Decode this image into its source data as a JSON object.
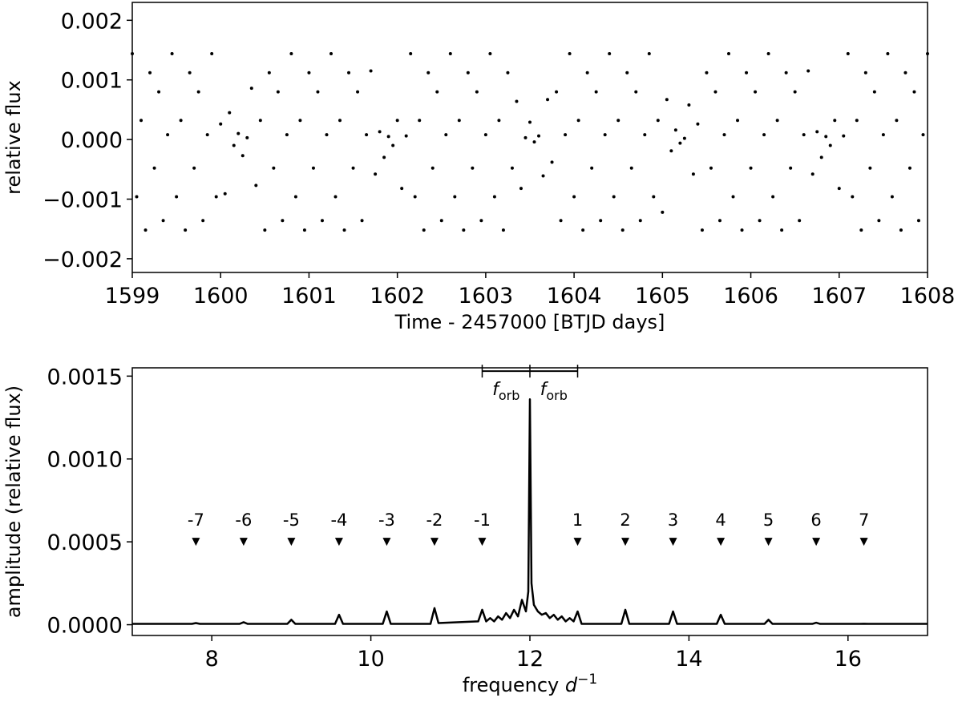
{
  "chart_data": [
    {
      "type": "scatter",
      "xlabel": "Time - 2457000 [BTJD days]",
      "ylabel": "relative flux",
      "color": "#000000",
      "xlim": [
        1599,
        1608
      ],
      "ylim": [
        -0.00223,
        0.0023
      ],
      "xticks": [
        1599,
        1600,
        1601,
        1602,
        1603,
        1604,
        1605,
        1606,
        1607,
        1608
      ],
      "yticks": [
        {
          "value": -0.002,
          "label": "−0.002"
        },
        {
          "value": -0.001,
          "label": "−0.001"
        },
        {
          "value": 0,
          "label": "0.000"
        },
        0.001,
        0.002
      ],
      "x": [
        1599,
        1599.05,
        1599.1,
        1599.15,
        1599.2,
        1599.25,
        1599.3,
        1599.35,
        1599.4,
        1599.45,
        1599.5,
        1599.55,
        1599.6,
        1599.65,
        1599.7,
        1599.75,
        1599.8,
        1599.85,
        1599.9,
        1599.95,
        1600,
        1600.05,
        1600.1,
        1600.15,
        1600.2,
        1600.25,
        1600.3,
        1600.35,
        1600.4,
        1600.45,
        1600.5,
        1600.55,
        1600.6,
        1600.65,
        1600.7,
        1600.75,
        1600.8,
        1600.85,
        1600.9,
        1600.95,
        1601,
        1601.05,
        1601.1,
        1601.15,
        1601.2,
        1601.25,
        1601.3,
        1601.35,
        1601.4,
        1601.45,
        1601.5,
        1601.55,
        1601.6,
        1601.65,
        1601.7,
        1601.75,
        1601.8,
        1601.85,
        1601.9,
        1601.95,
        1602,
        1602.05,
        1602.1,
        1602.15,
        1602.2,
        1602.25,
        1602.3,
        1602.35,
        1602.4,
        1602.45,
        1602.5,
        1602.55,
        1602.6,
        1602.65,
        1602.7,
        1602.75,
        1602.8,
        1602.85,
        1602.9,
        1602.95,
        1603,
        1603.05,
        1603.1,
        1603.15,
        1603.2,
        1603.25,
        1603.3,
        1603.35,
        1603.4,
        1603.45,
        1603.5,
        1603.55,
        1603.6,
        1603.65,
        1603.7,
        1603.75,
        1603.8,
        1603.85,
        1603.9,
        1603.95,
        1604,
        1604.05,
        1604.1,
        1604.15,
        1604.2,
        1604.25,
        1604.3,
        1604.35,
        1604.4,
        1604.45,
        1604.5,
        1604.55,
        1604.6,
        1604.65,
        1604.7,
        1604.75,
        1604.8,
        1604.85,
        1604.9,
        1604.95,
        1605,
        1605.05,
        1605.1,
        1605.15,
        1605.2,
        1605.25,
        1605.3,
        1605.35,
        1605.4,
        1605.45,
        1605.5,
        1605.55,
        1605.6,
        1605.65,
        1605.7,
        1605.75,
        1605.8,
        1605.85,
        1605.9,
        1605.95,
        1606,
        1606.05,
        1606.1,
        1606.15,
        1606.2,
        1606.25,
        1606.3,
        1606.35,
        1606.4,
        1606.45,
        1606.5,
        1606.55,
        1606.6,
        1606.65,
        1606.7,
        1606.75,
        1606.8,
        1606.85,
        1606.9,
        1606.95,
        1607,
        1607.05,
        1607.1,
        1607.15,
        1607.2,
        1607.25,
        1607.3,
        1607.35,
        1607.4,
        1607.45,
        1607.5,
        1607.55,
        1607.6,
        1607.65,
        1607.7,
        1607.75,
        1607.8,
        1607.85,
        1607.9,
        1607.95,
        1608
      ],
      "values": [
        0.00144,
        -0.00096,
        0.00032,
        -0.00152,
        0.00112,
        -0.00048,
        0.0008,
        -0.00136,
        8e-05,
        0.00144,
        -0.00096,
        0.00032,
        -0.00152,
        0.00112,
        -0.00048,
        0.0008,
        -0.00136,
        8e-05,
        0.00144,
        -0.00096,
        0.00026,
        -0.00091,
        0.00045,
        -0.0001,
        0.0001,
        -0.00027,
        3e-05,
        0.00086,
        -0.00077,
        0.00032,
        -0.00152,
        0.00112,
        -0.00048,
        0.0008,
        -0.00136,
        8e-05,
        0.00144,
        -0.00096,
        0.00032,
        -0.00152,
        0.00112,
        -0.00048,
        0.0008,
        -0.00136,
        8e-05,
        0.00144,
        -0.00096,
        0.00032,
        -0.00152,
        0.00112,
        -0.00048,
        0.0008,
        -0.00136,
        8e-05,
        0.00115,
        -0.00058,
        0.00013,
        -0.0003,
        5e-05,
        -0.0001,
        0.00032,
        -0.00082,
        6e-05,
        0.00144,
        -0.00096,
        0.00032,
        -0.00152,
        0.00112,
        -0.00048,
        0.0008,
        -0.00136,
        8e-05,
        0.00144,
        -0.00096,
        0.00032,
        -0.00152,
        0.00112,
        -0.00048,
        0.0008,
        -0.00136,
        8e-05,
        0.00144,
        -0.00096,
        0.00032,
        -0.00152,
        0.00112,
        -0.00048,
        0.00064,
        -0.00082,
        3e-05,
        0.00029,
        -4e-05,
        6e-05,
        -0.00061,
        0.00067,
        -0.00038,
        0.0008,
        -0.00136,
        8e-05,
        0.00144,
        -0.00096,
        0.00032,
        -0.00152,
        0.00112,
        -0.00048,
        0.0008,
        -0.00136,
        8e-05,
        0.00144,
        -0.00096,
        0.00032,
        -0.00152,
        0.00112,
        -0.00048,
        0.0008,
        -0.00136,
        8e-05,
        0.00144,
        -0.00096,
        0.00032,
        -0.00122,
        0.00067,
        -0.00019,
        0.00016,
        -6e-05,
        2e-05,
        0.00058,
        -0.00058,
        0.00026,
        -0.00152,
        0.00112,
        -0.00048,
        0.0008,
        -0.00136,
        8e-05,
        0.00144,
        -0.00096,
        0.00032,
        -0.00152,
        0.00112,
        -0.00048,
        0.0008,
        -0.00136,
        8e-05,
        0.00144,
        -0.00096,
        0.00032,
        -0.00152,
        0.00112,
        -0.00048,
        0.0008,
        -0.00136,
        8e-05,
        0.00115,
        -0.00058,
        0.00013,
        -0.0003,
        5e-05,
        -0.0001,
        0.00032,
        -0.00082,
        6e-05,
        0.00144,
        -0.00096,
        0.00032,
        -0.00152,
        0.00112,
        -0.00048,
        0.0008,
        -0.00136,
        8e-05,
        0.00144,
        -0.00096,
        0.00032,
        -0.00152,
        0.00112,
        -0.00048,
        0.0008,
        -0.00136,
        8e-05,
        0.00144
      ]
    },
    {
      "type": "line",
      "xlabel": "frequency",
      "xlabel_symbol": "d",
      "xlabel_exponent": "−1",
      "ylabel": "amplitude (relative flux)",
      "color": "#000000",
      "xlim": [
        7,
        17
      ],
      "ylim": [
        -6.5e-05,
        0.00155
      ],
      "xticks": [
        8,
        10,
        12,
        14,
        16
      ],
      "yticks": [
        {
          "value": 0,
          "label": "0.0000"
        },
        0.0005,
        {
          "value": 0.001,
          "label": "0.0010"
        },
        0.0015
      ],
      "x": [
        7,
        7.75,
        7.8,
        7.85,
        8.35,
        8.4,
        8.45,
        8.95,
        9,
        9.05,
        9.55,
        9.6,
        9.65,
        10.15,
        10.2,
        10.25,
        10.75,
        10.8,
        10.85,
        11.35,
        11.4,
        11.45,
        11.5,
        11.55,
        11.6,
        11.65,
        11.7,
        11.75,
        11.8,
        11.85,
        11.9,
        11.95,
        11.98,
        12,
        12.02,
        12.05,
        12.1,
        12.15,
        12.2,
        12.25,
        12.3,
        12.35,
        12.4,
        12.45,
        12.5,
        12.55,
        12.6,
        12.65,
        13.15,
        13.2,
        13.25,
        13.75,
        13.8,
        13.85,
        14.35,
        14.4,
        14.45,
        14.95,
        15,
        15.05,
        15.55,
        15.6,
        15.65,
        16.15,
        16.2,
        16.25,
        17
      ],
      "values": [
        5e-06,
        5e-06,
        1e-05,
        5e-06,
        5e-06,
        1.5e-05,
        5e-06,
        5e-06,
        3e-05,
        5e-06,
        5e-06,
        6e-05,
        5e-06,
        5e-06,
        8e-05,
        5e-06,
        5e-06,
        0.0001,
        1e-05,
        2e-05,
        9e-05,
        2e-05,
        4e-05,
        2e-05,
        5e-05,
        3e-05,
        7e-05,
        4e-05,
        9e-05,
        5e-05,
        0.00015,
        8e-05,
        0.0002,
        0.00136,
        0.00025,
        0.00012,
        8e-05,
        6e-05,
        7e-05,
        4e-05,
        6e-05,
        3e-05,
        5e-05,
        2e-05,
        4e-05,
        2e-05,
        8e-05,
        5e-06,
        5e-06,
        9e-05,
        5e-06,
        5e-06,
        8e-05,
        5e-06,
        5e-06,
        6e-05,
        5e-06,
        5e-06,
        3e-05,
        5e-06,
        5e-06,
        1.2e-05,
        5e-06,
        5e-06,
        6e-06,
        5e-06,
        5e-06
      ],
      "markers": {
        "y": 0.0005,
        "x": [
          7.8,
          8.4,
          9,
          9.6,
          10.2,
          10.8,
          11.4,
          12.6,
          13.2,
          13.8,
          14.4,
          15,
          15.6,
          16.2
        ],
        "labels": [
          "-7",
          "-6",
          "-5",
          "-4",
          "-3",
          "-2",
          "-1",
          "1",
          "2",
          "3",
          "4",
          "5",
          "6",
          "7"
        ]
      },
      "bracket": {
        "y": 0.00153,
        "x": [
          11.4,
          12,
          12.6
        ],
        "labels": [
          {
            "text": "f",
            "sub": "orb"
          },
          {
            "text": "f",
            "sub": "orb"
          }
        ]
      }
    }
  ]
}
